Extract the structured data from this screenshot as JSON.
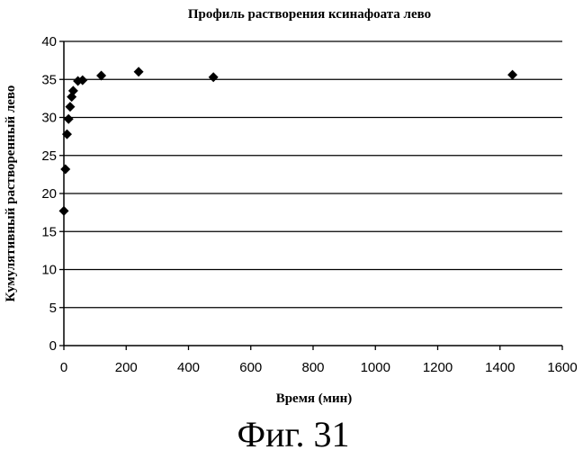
{
  "chart_data": {
    "type": "scatter",
    "title": "Профиль растворения ксинафоата лево",
    "xlabel": "Время (мин)",
    "ylabel": "Кумулятивный растворенный лево",
    "xlim": [
      0,
      1600
    ],
    "ylim": [
      0,
      40
    ],
    "x_ticks": [
      0,
      200,
      400,
      600,
      800,
      1000,
      1200,
      1400,
      1600
    ],
    "y_ticks": [
      0,
      5,
      10,
      15,
      20,
      25,
      30,
      35,
      40
    ],
    "grid": "horizontal",
    "legend": "none",
    "marker": "diamond",
    "marker_color": "#000000",
    "points": [
      {
        "x": 0,
        "y": 17.7
      },
      {
        "x": 5,
        "y": 23.2
      },
      {
        "x": 10,
        "y": 27.8
      },
      {
        "x": 15,
        "y": 29.8
      },
      {
        "x": 20,
        "y": 31.4
      },
      {
        "x": 25,
        "y": 32.7
      },
      {
        "x": 30,
        "y": 33.5
      },
      {
        "x": 45,
        "y": 34.8
      },
      {
        "x": 60,
        "y": 34.9
      },
      {
        "x": 120,
        "y": 35.5
      },
      {
        "x": 240,
        "y": 36.0
      },
      {
        "x": 480,
        "y": 35.3
      },
      {
        "x": 1440,
        "y": 35.6
      }
    ]
  },
  "caption": "Фиг. 31"
}
